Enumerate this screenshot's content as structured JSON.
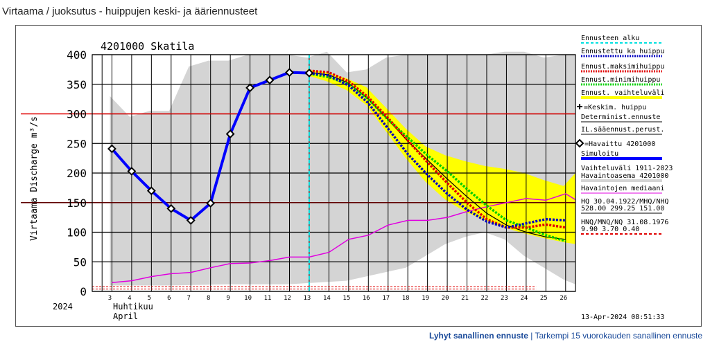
{
  "page_title": "Virtaama / juoksutus - huippujen keski- ja ääriennusteet",
  "footer": {
    "link1": "Lyhyt sanallinen ennuste",
    "sep": "|",
    "link2": "Tarkempi 15 vuorokauden sanallinen ennuste"
  },
  "chart_data": {
    "type": "line",
    "title": "4201000 Skatila",
    "ylabel": "Virtaama Discharge m³/s",
    "ylim": [
      0,
      400
    ],
    "yticks": [
      0,
      50,
      100,
      150,
      200,
      250,
      300,
      350,
      400
    ],
    "x_days": [
      3,
      4,
      5,
      6,
      7,
      8,
      9,
      10,
      11,
      12,
      13,
      14,
      15,
      16,
      17,
      18,
      19,
      20,
      21,
      22,
      23,
      24,
      25,
      26
    ],
    "year_label": "2024",
    "month_label_fi": "Huhtikuu",
    "month_label_en": "April",
    "timestamp": "13-Apr-2024 08:51:33",
    "forecast_start_day": 13,
    "hline_red": 300,
    "hline_dark": 150,
    "colors": {
      "observed": "#0000ff",
      "forecast": "#0000c0",
      "max": "#e00000",
      "min": "#00d000",
      "range": "#ffff00",
      "median": "#e000e0",
      "start": "#00e0e0",
      "envelope": "#d4d4d4"
    },
    "envelope_upper": [
      [
        2.9,
        330
      ],
      [
        3.9,
        295
      ],
      [
        4.9,
        305
      ],
      [
        5.9,
        305
      ],
      [
        6.9,
        380
      ],
      [
        7.9,
        390
      ],
      [
        8.9,
        390
      ],
      [
        9.9,
        400
      ],
      [
        10.9,
        400
      ],
      [
        11.9,
        400
      ],
      [
        12.9,
        395
      ],
      [
        13.9,
        405
      ],
      [
        14.9,
        370
      ],
      [
        15.9,
        375
      ],
      [
        16.9,
        395
      ],
      [
        17.9,
        400
      ],
      [
        18.9,
        400
      ],
      [
        19.9,
        400
      ],
      [
        20.9,
        400
      ],
      [
        21.9,
        400
      ],
      [
        22.9,
        405
      ],
      [
        23.9,
        405
      ],
      [
        24.9,
        395
      ],
      [
        25.9,
        400
      ]
    ],
    "envelope_lower": [
      [
        2.9,
        10
      ],
      [
        5.9,
        10
      ],
      [
        8.9,
        12
      ],
      [
        11.9,
        12
      ],
      [
        14.9,
        18
      ],
      [
        17.9,
        40
      ],
      [
        18.9,
        60
      ],
      [
        19.9,
        80
      ],
      [
        20.9,
        92
      ],
      [
        21.9,
        100
      ],
      [
        22.9,
        88
      ],
      [
        23.9,
        60
      ],
      [
        24.9,
        40
      ],
      [
        25.9,
        20
      ],
      [
        26.5,
        12
      ]
    ],
    "range_upper": [
      [
        12.9,
        375
      ],
      [
        13.9,
        370
      ],
      [
        14.9,
        360
      ],
      [
        15.9,
        345
      ],
      [
        16.9,
        310
      ],
      [
        17.9,
        275
      ],
      [
        18.9,
        245
      ],
      [
        19.9,
        230
      ],
      [
        20.9,
        220
      ],
      [
        21.9,
        212
      ],
      [
        22.9,
        207
      ],
      [
        23.9,
        200
      ],
      [
        24.9,
        188
      ],
      [
        25.9,
        178
      ],
      [
        26.5,
        200
      ]
    ],
    "range_lower": [
      [
        12.9,
        365
      ],
      [
        13.9,
        355
      ],
      [
        14.9,
        340
      ],
      [
        15.9,
        315
      ],
      [
        16.9,
        270
      ],
      [
        17.9,
        225
      ],
      [
        18.9,
        185
      ],
      [
        19.9,
        155
      ],
      [
        20.9,
        135
      ],
      [
        21.9,
        120
      ],
      [
        22.9,
        108
      ],
      [
        23.9,
        98
      ],
      [
        24.9,
        90
      ],
      [
        25.9,
        83
      ],
      [
        26.5,
        80
      ]
    ],
    "observed": [
      [
        3,
        241
      ],
      [
        4,
        203
      ],
      [
        5,
        170
      ],
      [
        6,
        140
      ],
      [
        7,
        120
      ],
      [
        8,
        149
      ],
      [
        9,
        266
      ],
      [
        10,
        344
      ],
      [
        11,
        357
      ],
      [
        12,
        370
      ],
      [
        13,
        369
      ]
    ],
    "forecast_det": [
      [
        13,
        369
      ],
      [
        14,
        365
      ],
      [
        15,
        348
      ],
      [
        16,
        318
      ],
      [
        17,
        275
      ],
      [
        18,
        232
      ],
      [
        19,
        197
      ],
      [
        20,
        165
      ],
      [
        21,
        138
      ],
      [
        22,
        118
      ],
      [
        23,
        108
      ],
      [
        24,
        115
      ],
      [
        25,
        122
      ],
      [
        26,
        120
      ]
    ],
    "forecast_max": [
      [
        13,
        373
      ],
      [
        14,
        370
      ],
      [
        15,
        355
      ],
      [
        16,
        328
      ],
      [
        17,
        293
      ],
      [
        18,
        255
      ],
      [
        19,
        218
      ],
      [
        20,
        183
      ],
      [
        21,
        150
      ],
      [
        22,
        122
      ],
      [
        23,
        108
      ],
      [
        24,
        108
      ],
      [
        25,
        113
      ],
      [
        26,
        108
      ]
    ],
    "forecast_min": [
      [
        13,
        368
      ],
      [
        14,
        362
      ],
      [
        15,
        350
      ],
      [
        16,
        325
      ],
      [
        17,
        290
      ],
      [
        18,
        260
      ],
      [
        19,
        230
      ],
      [
        20,
        203
      ],
      [
        21,
        173
      ],
      [
        22,
        145
      ],
      [
        23,
        120
      ],
      [
        24,
        108
      ],
      [
        25,
        95
      ],
      [
        26,
        85
      ]
    ],
    "forecast_mean": [
      [
        13,
        370
      ],
      [
        14,
        366
      ],
      [
        15,
        352
      ],
      [
        16,
        325
      ],
      [
        17,
        290
      ],
      [
        18,
        254
      ],
      [
        19,
        222
      ],
      [
        20,
        190
      ],
      [
        21,
        160
      ],
      [
        22,
        132
      ],
      [
        23,
        112
      ],
      [
        24,
        100
      ],
      [
        25,
        92
      ],
      [
        26,
        88
      ]
    ],
    "median": [
      [
        3,
        15
      ],
      [
        4,
        18
      ],
      [
        5,
        25
      ],
      [
        6,
        30
      ],
      [
        7,
        32
      ],
      [
        8,
        40
      ],
      [
        9,
        47
      ],
      [
        10,
        48
      ],
      [
        11,
        52
      ],
      [
        12,
        58
      ],
      [
        13,
        58
      ],
      [
        14,
        66
      ],
      [
        15,
        88
      ],
      [
        16,
        95
      ],
      [
        17,
        112
      ],
      [
        18,
        120
      ],
      [
        19,
        120
      ],
      [
        20,
        125
      ],
      [
        21,
        135
      ],
      [
        22,
        143
      ],
      [
        23,
        150
      ],
      [
        24,
        157
      ],
      [
        25,
        154
      ],
      [
        26,
        165
      ],
      [
        26.5,
        155
      ]
    ],
    "legend": [
      {
        "label": "Ennusteen alku",
        "color": "#00e0e0",
        "style": "dash"
      },
      {
        "label": "Ennustettu ka huippu",
        "color": "#0000c0",
        "style": "dot"
      },
      {
        "label": "Ennust.maksimihuippu",
        "color": "#e00000",
        "style": "dot"
      },
      {
        "label": "Ennust.minimihuippu",
        "color": "#00d000",
        "style": "dot"
      },
      {
        "label": "Ennust. vaihteluväli",
        "color": "#ffff00",
        "style": "thick"
      },
      {
        "label": "=Keskim. huippu",
        "color": "#000000",
        "style": "plus"
      },
      {
        "label": "Determinist.ennuste",
        "color": "#000000",
        "style": "line"
      },
      {
        "label": "IL.sääennust.perust.",
        "color": "#000000",
        "style": "line"
      },
      {
        "label": "=Havaittu 4201000",
        "color": "#000000",
        "style": "diamond"
      },
      {
        "label": "Simuloitu",
        "color": "#0000ff",
        "style": "thick"
      },
      {
        "label": "Vaihteluväli 1911-2023",
        "color": "#d4d4d4",
        "style": "none"
      },
      {
        "label": "Havaintoasema 4201000",
        "color": "#d4d4d4",
        "style": "thick"
      },
      {
        "label": "Havaintojen mediaani",
        "color": "#e000e0",
        "style": "line"
      },
      {
        "label": "HQ 30.04.1922/MHQ/NHQ",
        "color": "#000000",
        "style": "none"
      },
      {
        "label": "528.00 299.25 151.00",
        "color": "#000000",
        "style": "line"
      },
      {
        "label": "HNQ/MNQ/NQ 31.08.1976",
        "color": "#000000",
        "style": "none"
      },
      {
        "label": "9.90 3.70 0.40",
        "color": "#e00000",
        "style": "dash"
      }
    ]
  }
}
